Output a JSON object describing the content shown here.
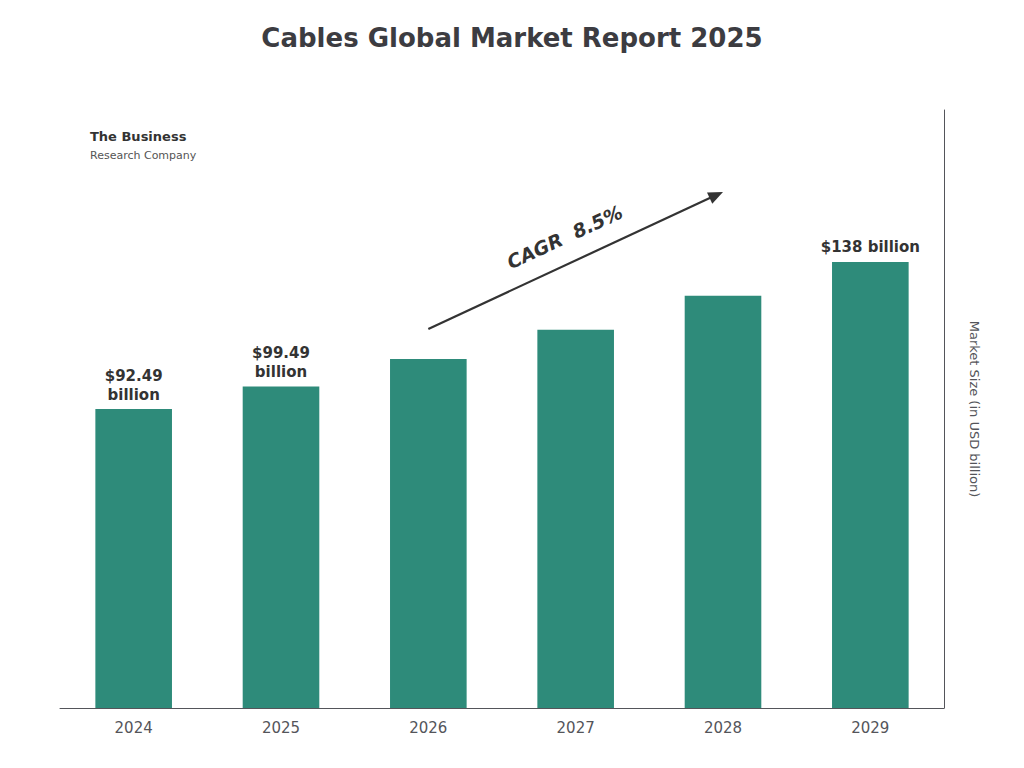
{
  "chart_data": {
    "type": "bar",
    "title": "Cables Global Market Report 2025",
    "categories": [
      "2024",
      "2025",
      "2026",
      "2027",
      "2028",
      "2029"
    ],
    "values": [
      92.49,
      99.49,
      108.0,
      117.0,
      127.5,
      138.0
    ],
    "value_labels": [
      "$92.49\nbillion",
      "$99.49\nbillion",
      null,
      null,
      null,
      "$138 billion"
    ],
    "data_labels": true,
    "color": "#2e8b7a",
    "ylabel": "Market Size (in USD billion)",
    "ylim": [
      0,
      185
    ],
    "grid": false,
    "tick_labels": "x",
    "annotations": [
      "CAGR  8.5%",
      "The Business",
      "Research Company"
    ]
  }
}
